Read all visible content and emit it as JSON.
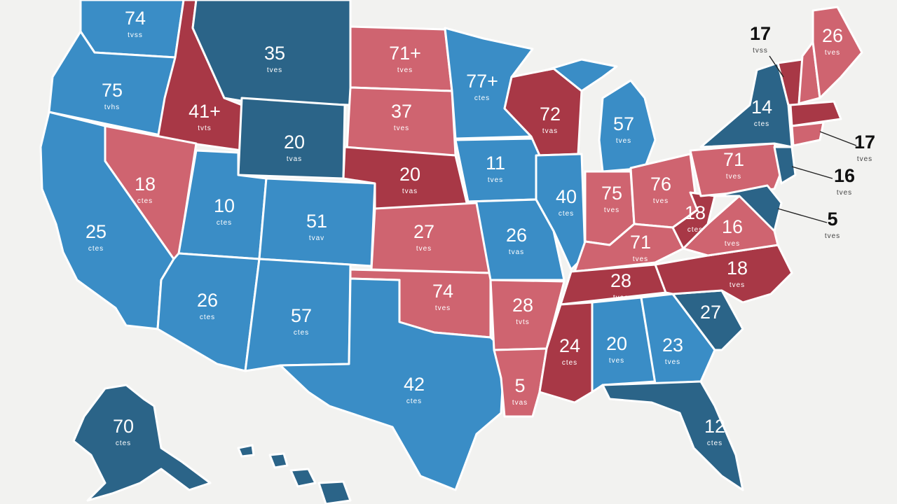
{
  "colors": {
    "background": "#f2f2f0",
    "light_blue": "#3a8dc6",
    "dark_blue": "#2b6488",
    "light_red": "#cf6470",
    "dark_red": "#a83846"
  },
  "states": [
    {
      "id": "WA",
      "value": "74",
      "sub": "tvss"
    },
    {
      "id": "OR",
      "value": "75",
      "sub": "tvhs"
    },
    {
      "id": "CA",
      "value": "25",
      "sub": "ctes"
    },
    {
      "id": "ID",
      "value": "41+",
      "sub": "tvts"
    },
    {
      "id": "NV",
      "value": "18",
      "sub": "ctes"
    },
    {
      "id": "MT",
      "value": "35",
      "sub": "tves"
    },
    {
      "id": "WY",
      "value": "20",
      "sub": "tvas"
    },
    {
      "id": "UT",
      "value": "10",
      "sub": "ctes"
    },
    {
      "id": "CO",
      "value": "51",
      "sub": "tvav"
    },
    {
      "id": "AZ",
      "value": "26",
      "sub": "ctes"
    },
    {
      "id": "NM",
      "value": "57",
      "sub": "ctes"
    },
    {
      "id": "ND",
      "value": "71+",
      "sub": "tves"
    },
    {
      "id": "SD",
      "value": "37",
      "sub": "tves"
    },
    {
      "id": "NE",
      "value": "20",
      "sub": "tvas"
    },
    {
      "id": "KS",
      "value": "27",
      "sub": "tves"
    },
    {
      "id": "OK",
      "value": "74",
      "sub": "tves"
    },
    {
      "id": "TX",
      "value": "42",
      "sub": "ctes"
    },
    {
      "id": "MN",
      "value": "77+",
      "sub": "ctes"
    },
    {
      "id": "IA",
      "value": "11",
      "sub": "tves"
    },
    {
      "id": "MO",
      "value": "26",
      "sub": "tvas"
    },
    {
      "id": "AR",
      "value": "28",
      "sub": "tvts"
    },
    {
      "id": "LA",
      "value": "5",
      "sub": "tvas"
    },
    {
      "id": "WI",
      "value": "72",
      "sub": "tvas"
    },
    {
      "id": "IL",
      "value": "40",
      "sub": "ctes"
    },
    {
      "id": "MI",
      "value": "57",
      "sub": "tves"
    },
    {
      "id": "IN",
      "value": "75",
      "sub": "tves"
    },
    {
      "id": "OH",
      "value": "76",
      "sub": "tves"
    },
    {
      "id": "KY",
      "value": "71",
      "sub": "tves"
    },
    {
      "id": "TN",
      "value": "28",
      "sub": "tvas"
    },
    {
      "id": "MS",
      "value": "24",
      "sub": "ctes"
    },
    {
      "id": "AL",
      "value": "20",
      "sub": "tves"
    },
    {
      "id": "GA",
      "value": "23",
      "sub": "tves"
    },
    {
      "id": "FL",
      "value": "12",
      "sub": "ctes"
    },
    {
      "id": "SC",
      "value": "27",
      "sub": ""
    },
    {
      "id": "NC",
      "value": "18",
      "sub": "tves"
    },
    {
      "id": "VA",
      "value": "16",
      "sub": "tves"
    },
    {
      "id": "WV",
      "value": "18",
      "sub": "ctes"
    },
    {
      "id": "PA",
      "value": "71",
      "sub": "tves"
    },
    {
      "id": "NY",
      "value": "14",
      "sub": "ctes"
    },
    {
      "id": "ME",
      "value": "26",
      "sub": "tves"
    },
    {
      "id": "AK",
      "value": "70",
      "sub": "ctes"
    }
  ],
  "callouts": [
    {
      "id": "VT",
      "value": "17",
      "sub": "tvss"
    },
    {
      "id": "MA",
      "value": "17",
      "sub": "tves"
    },
    {
      "id": "NJ",
      "value": "16",
      "sub": "tves"
    },
    {
      "id": "MD",
      "value": "5",
      "sub": "tves"
    }
  ]
}
